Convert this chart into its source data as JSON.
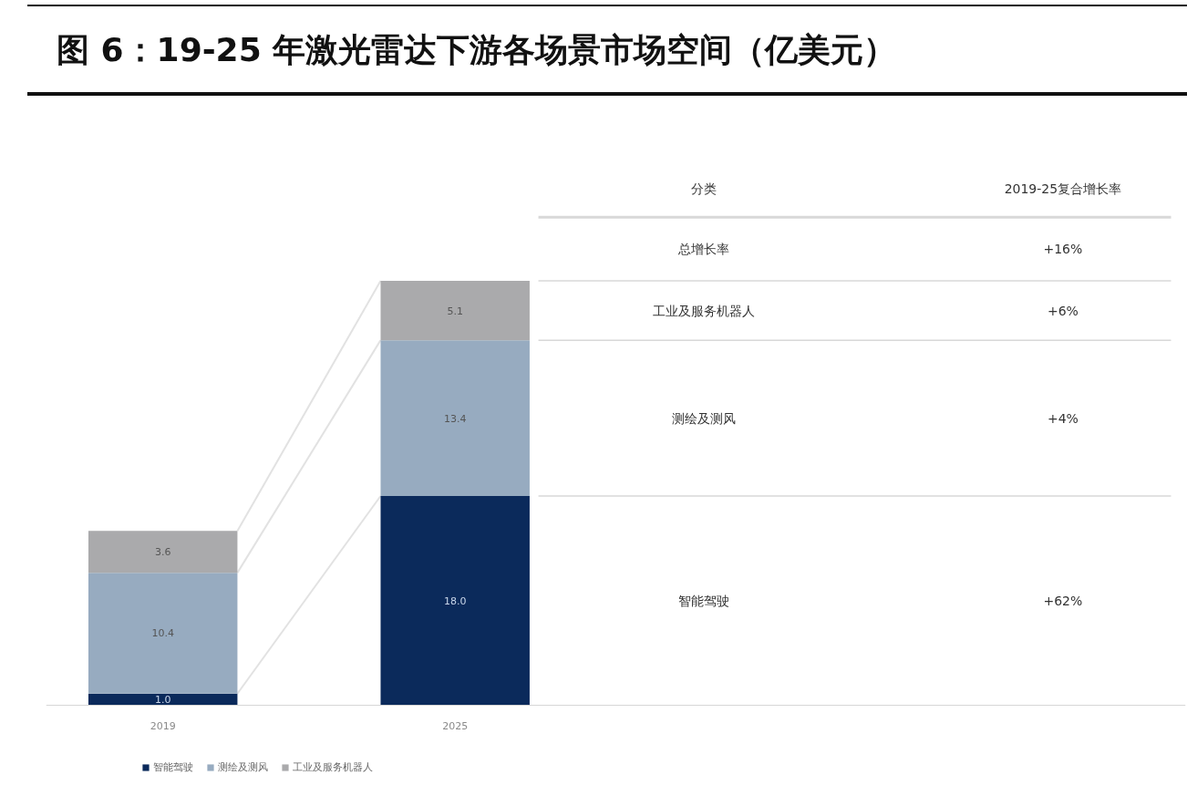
{
  "chart_data": {
    "type": "bar",
    "title": "图 6：19-25 年激光雷达下游各场景市场空间（亿美元）",
    "categories": [
      "2019",
      "2025"
    ],
    "stacked": true,
    "series": [
      {
        "name": "智能驾驶",
        "color": "#0b2a5b",
        "values": [
          1.0,
          18.0
        ],
        "value_labels": [
          "1.0",
          "18.0"
        ]
      },
      {
        "name": "测绘及测风",
        "color": "#97abc0",
        "values": [
          10.4,
          13.4
        ],
        "value_labels": [
          "10.4",
          "13.4"
        ]
      },
      {
        "name": "工业及服务机器人",
        "color": "#aaaaac",
        "values": [
          3.6,
          5.1
        ],
        "value_labels": [
          "3.6",
          "5.1"
        ]
      }
    ],
    "legend": "bottom left",
    "grid": false,
    "annotations": [
      "分类",
      "2019-25复合增长率",
      "总增长率",
      "+16%",
      "工业及服务机器人",
      "+6%",
      "测绘及测风",
      "+4%",
      "智能驾驶",
      "+62%"
    ]
  }
}
